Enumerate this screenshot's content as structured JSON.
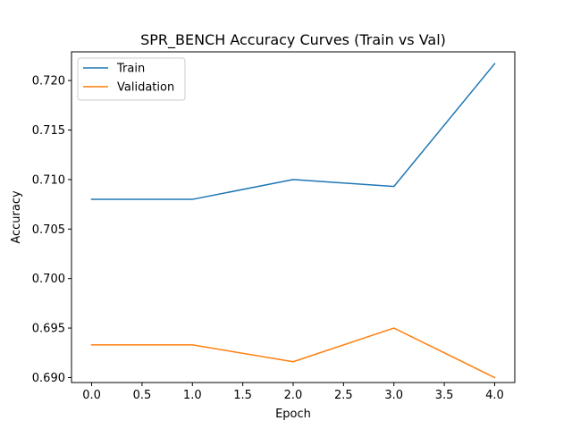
{
  "chart_data": {
    "type": "line",
    "title": "SPR_BENCH Accuracy Curves (Train vs Val)",
    "xlabel": "Epoch",
    "ylabel": "Accuracy",
    "x": [
      0,
      1,
      2,
      3,
      4
    ],
    "xlim": [
      -0.2,
      4.2
    ],
    "ylim": [
      0.6895,
      0.7229
    ],
    "xticks": [
      0.0,
      0.5,
      1.0,
      1.5,
      2.0,
      2.5,
      3.0,
      3.5,
      4.0
    ],
    "xtick_labels": [
      "0.0",
      "0.5",
      "1.0",
      "1.5",
      "2.0",
      "2.5",
      "3.0",
      "3.5",
      "4.0"
    ],
    "yticks": [
      0.69,
      0.695,
      0.7,
      0.705,
      0.71,
      0.715,
      0.72
    ],
    "ytick_labels": [
      "0.690",
      "0.695",
      "0.700",
      "0.705",
      "0.710",
      "0.715",
      "0.720"
    ],
    "grid": false,
    "legend_position": "top-left",
    "series": [
      {
        "name": "Train",
        "color": "#1f77b4",
        "values": [
          0.708,
          0.708,
          0.71,
          0.7093,
          0.7217
        ]
      },
      {
        "name": "Validation",
        "color": "#ff7f0e",
        "values": [
          0.6933,
          0.6933,
          0.6916,
          0.695,
          0.69
        ]
      }
    ]
  }
}
